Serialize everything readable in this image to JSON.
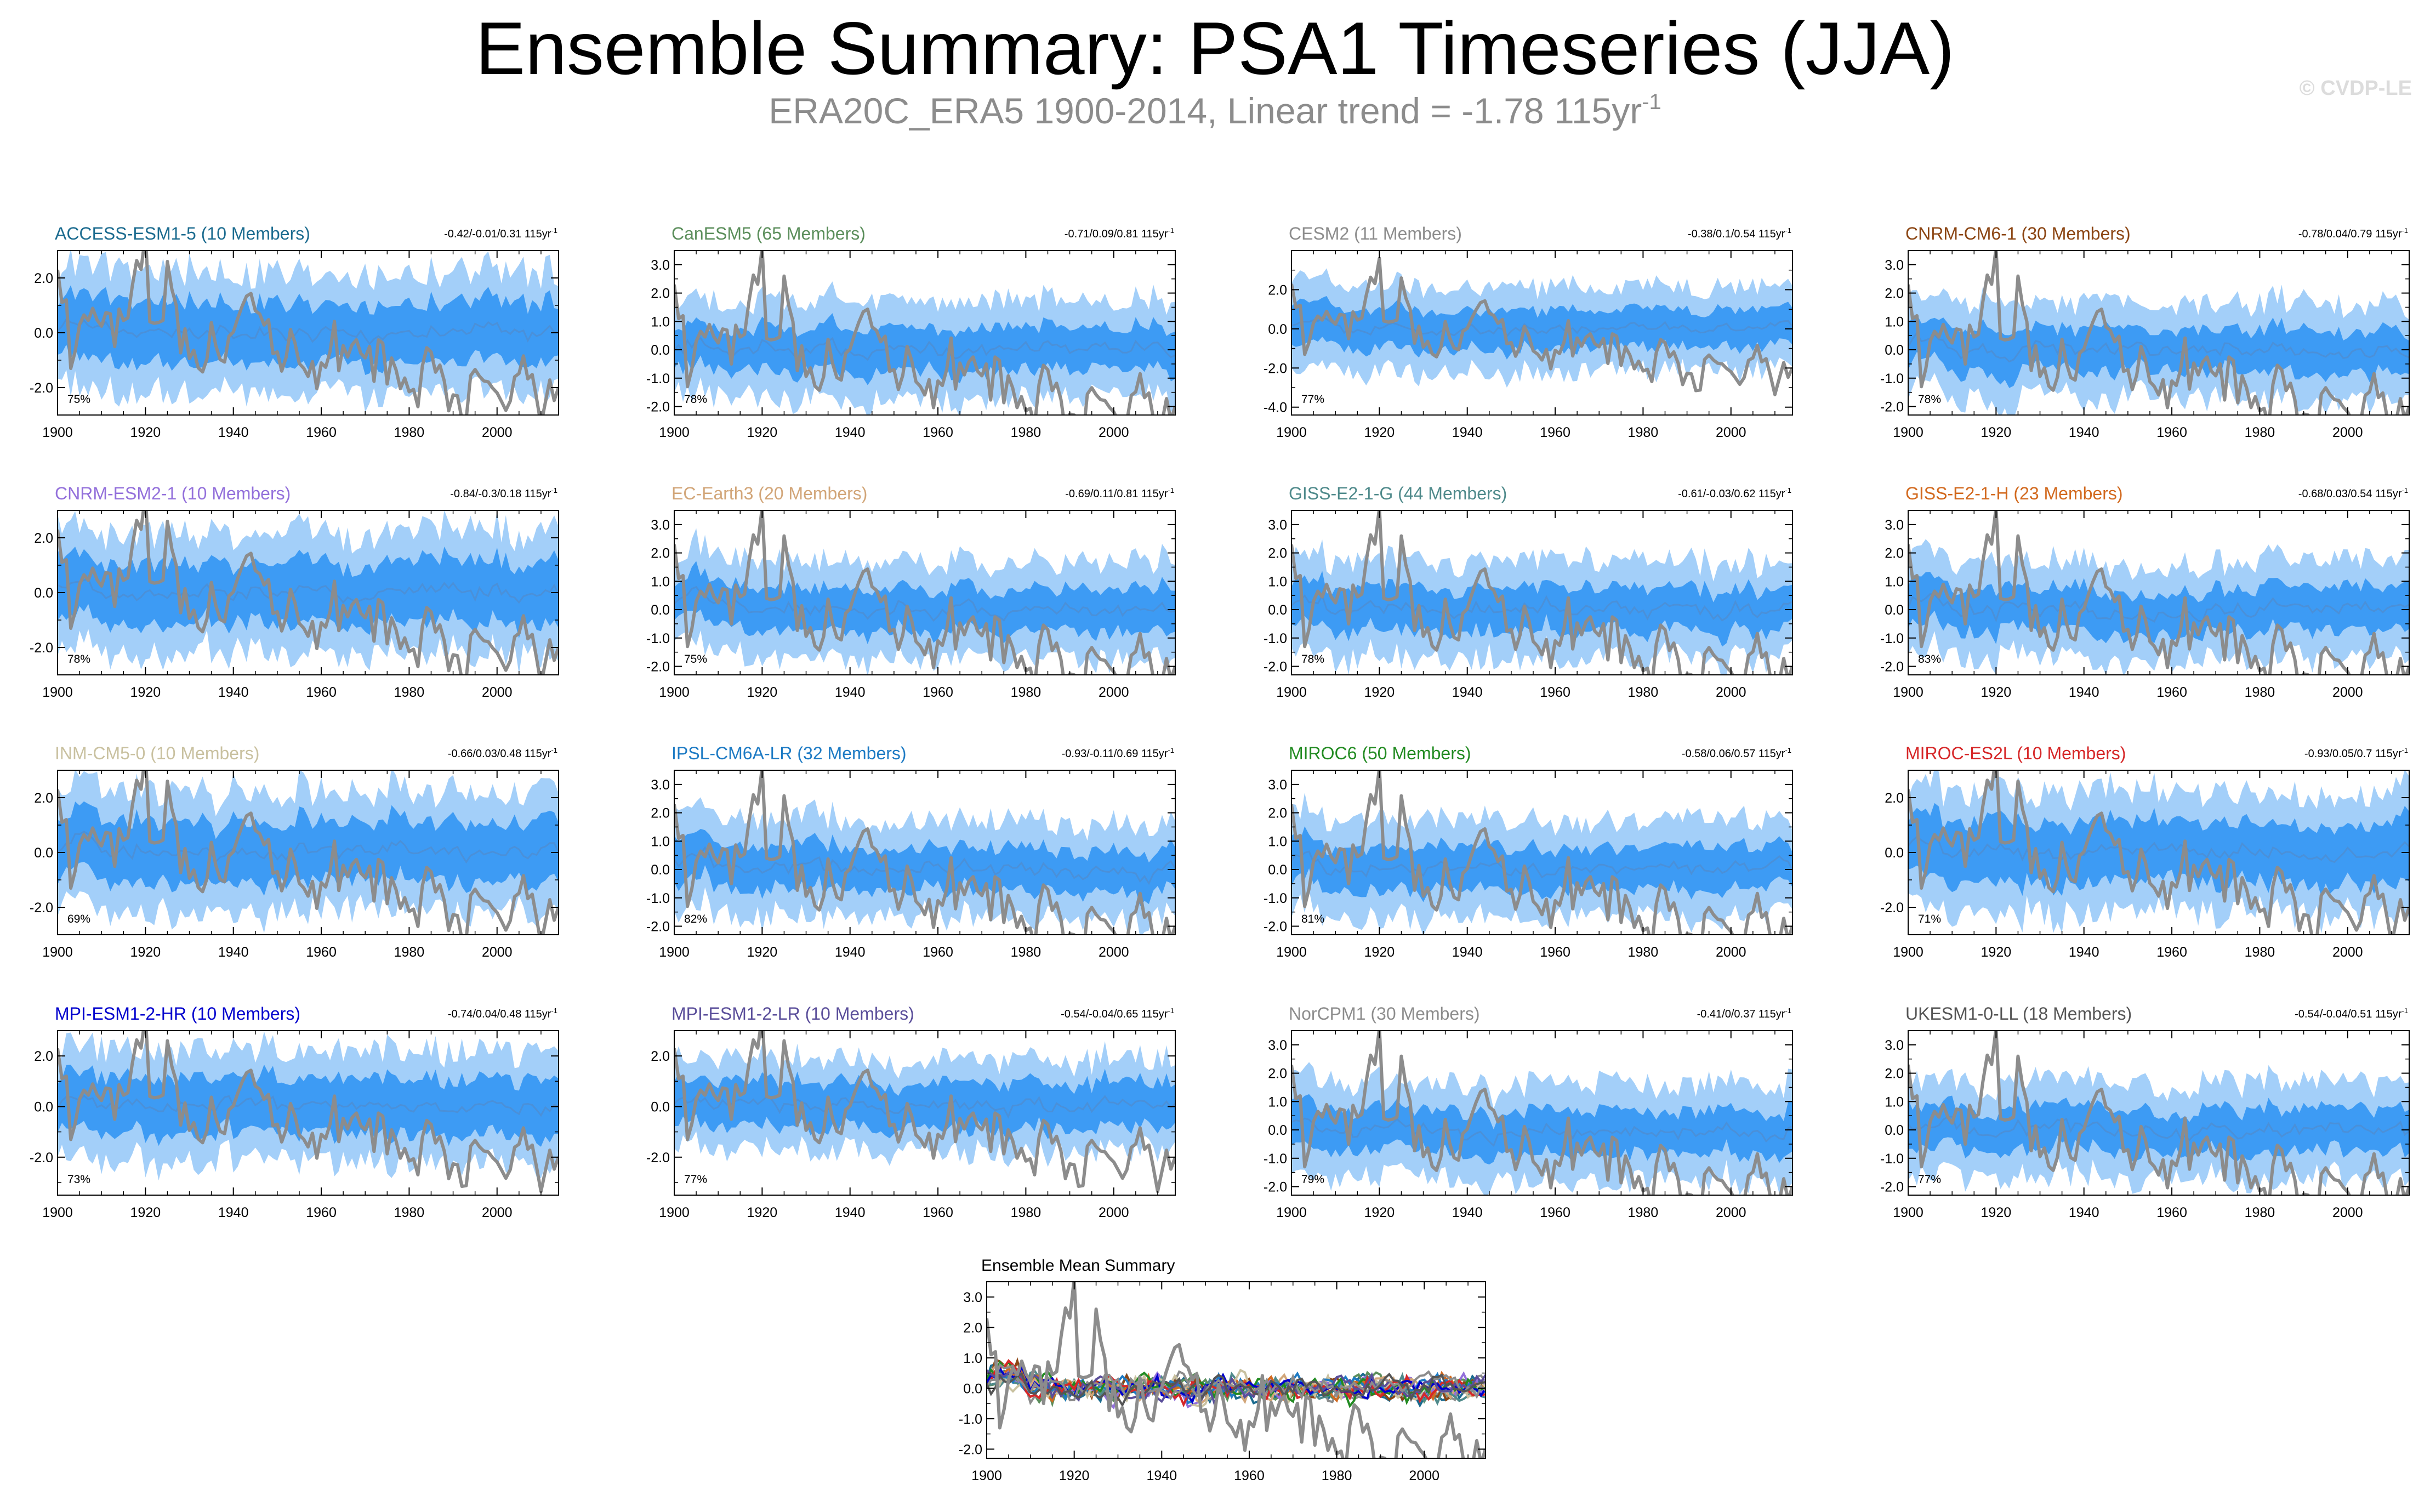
{
  "header": {
    "title": "Ensemble Summary: PSA1 Timeseries (JJA)",
    "subtitle_prefix": "ERA20C_ERA5 1900-2014, Linear trend = -1.78 115yr",
    "subtitle_exp": "-1",
    "watermark": "© CVDP-LE"
  },
  "colors": {
    "outer_band": "#a3cff9",
    "inner_band": "#3d9bf4",
    "ensemble_mean": "#4a90d9",
    "observed": "#8c8c8c",
    "axis": "#000000"
  },
  "chart_data": [
    {
      "type": "line",
      "name": "ACCESS-ESM1-5",
      "title": "ACCESS-ESM1-5 (10 Members)",
      "title_color": "#1b6b8f",
      "trend_label": "-0.42/-0.01/0.31 115yr",
      "trend_exp": "-1",
      "pct_label": "75%",
      "ylim": [
        -3.0,
        3.0
      ],
      "yticks": [
        -2.0,
        0.0,
        2.0
      ],
      "ytick_labels": [
        "-2.0",
        "0.0",
        "2.0"
      ],
      "xlim": [
        1900,
        2014
      ],
      "xticks": [
        1900,
        1920,
        1940,
        1960,
        1980,
        2000
      ],
      "xtick_labels": [
        "1900",
        "1920",
        "1940",
        "1960",
        "1980",
        "2000"
      ],
      "band_outer": 2.2,
      "band_inner": 1.1,
      "seed": 11
    },
    {
      "type": "line",
      "name": "CanESM5",
      "title": "CanESM5 (65 Members)",
      "title_color": "#5b8e5b",
      "trend_label": "-0.71/0.09/0.81 115yr",
      "trend_exp": "-1",
      "pct_label": "78%",
      "ylim": [
        -2.3,
        3.5
      ],
      "yticks": [
        -2.0,
        -1.0,
        0.0,
        1.0,
        2.0,
        3.0
      ],
      "ytick_labels": [
        "-2.0",
        "-1.0",
        "0.0",
        "1.0",
        "2.0",
        "3.0"
      ],
      "xlim": [
        1900,
        2014
      ],
      "xticks": [
        1900,
        1920,
        1940,
        1960,
        1980,
        2000
      ],
      "xtick_labels": [
        "1900",
        "1920",
        "1940",
        "1960",
        "1980",
        "2000"
      ],
      "band_outer": 1.7,
      "band_inner": 0.75,
      "seed": 22
    },
    {
      "type": "line",
      "name": "CESM2",
      "title": "CESM2 (11 Members)",
      "title_color": "#8c8c8c",
      "trend_label": "-0.38/0.1/0.54 115yr",
      "trend_exp": "-1",
      "pct_label": "77%",
      "ylim": [
        -4.4,
        4.0
      ],
      "yticks": [
        -4.0,
        -2.0,
        0.0,
        2.0
      ],
      "ytick_labels": [
        "-4.0",
        "-2.0",
        "0.0",
        "2.0"
      ],
      "xlim": [
        1900,
        2014
      ],
      "xticks": [
        1900,
        1920,
        1940,
        1960,
        1980,
        2000
      ],
      "xtick_labels": [
        "1900",
        "1920",
        "1940",
        "1960",
        "1980",
        "2000"
      ],
      "band_outer": 2.2,
      "band_inner": 1.0,
      "seed": 33
    },
    {
      "type": "line",
      "name": "CNRM-CM6-1",
      "title": "CNRM-CM6-1 (30 Members)",
      "title_color": "#8b4513",
      "trend_label": "-0.78/0.04/0.79 115yr",
      "trend_exp": "-1",
      "pct_label": "78%",
      "ylim": [
        -2.3,
        3.5
      ],
      "yticks": [
        -2.0,
        -1.0,
        0.0,
        1.0,
        2.0,
        3.0
      ],
      "ytick_labels": [
        "-2.0",
        "-1.0",
        "0.0",
        "1.0",
        "2.0",
        "3.0"
      ],
      "xlim": [
        1900,
        2014
      ],
      "xticks": [
        1900,
        1920,
        1940,
        1960,
        1980,
        2000
      ],
      "xtick_labels": [
        "1900",
        "1920",
        "1940",
        "1960",
        "1980",
        "2000"
      ],
      "band_outer": 1.7,
      "band_inner": 0.75,
      "seed": 44
    },
    {
      "type": "line",
      "name": "CNRM-ESM2-1",
      "title": "CNRM-ESM2-1 (10 Members)",
      "title_color": "#9370db",
      "trend_label": "-0.84/-0.3/0.18 115yr",
      "trend_exp": "-1",
      "pct_label": "78%",
      "ylim": [
        -3.0,
        3.0
      ],
      "yticks": [
        -2.0,
        0.0,
        2.0
      ],
      "ytick_labels": [
        "-2.0",
        "0.0",
        "2.0"
      ],
      "xlim": [
        1900,
        2014
      ],
      "xticks": [
        1900,
        1920,
        1940,
        1960,
        1980,
        2000
      ],
      "xtick_labels": [
        "1900",
        "1920",
        "1940",
        "1960",
        "1980",
        "2000"
      ],
      "band_outer": 2.2,
      "band_inner": 1.1,
      "seed": 55
    },
    {
      "type": "line",
      "name": "EC-Earth3",
      "title": "EC-Earth3 (20 Members)",
      "title_color": "#d2a679",
      "trend_label": "-0.69/0.11/0.81 115yr",
      "trend_exp": "-1",
      "pct_label": "75%",
      "ylim": [
        -2.3,
        3.5
      ],
      "yticks": [
        -2.0,
        -1.0,
        0.0,
        1.0,
        2.0,
        3.0
      ],
      "ytick_labels": [
        "-2.0",
        "-1.0",
        "0.0",
        "1.0",
        "2.0",
        "3.0"
      ],
      "xlim": [
        1900,
        2014
      ],
      "xticks": [
        1900,
        1920,
        1940,
        1960,
        1980,
        2000
      ],
      "xtick_labels": [
        "1900",
        "1920",
        "1940",
        "1960",
        "1980",
        "2000"
      ],
      "band_outer": 1.7,
      "band_inner": 0.75,
      "seed": 66
    },
    {
      "type": "line",
      "name": "GISS-E2-1-G",
      "title": "GISS-E2-1-G (44 Members)",
      "title_color": "#4f8a8b",
      "trend_label": "-0.61/-0.03/0.62 115yr",
      "trend_exp": "-1",
      "pct_label": "78%",
      "ylim": [
        -2.3,
        3.5
      ],
      "yticks": [
        -2.0,
        -1.0,
        0.0,
        1.0,
        2.0,
        3.0
      ],
      "ytick_labels": [
        "-2.0",
        "-1.0",
        "0.0",
        "1.0",
        "2.0",
        "3.0"
      ],
      "xlim": [
        1900,
        2014
      ],
      "xticks": [
        1900,
        1920,
        1940,
        1960,
        1980,
        2000
      ],
      "xtick_labels": [
        "1900",
        "1920",
        "1940",
        "1960",
        "1980",
        "2000"
      ],
      "band_outer": 1.7,
      "band_inner": 0.75,
      "seed": 77
    },
    {
      "type": "line",
      "name": "GISS-E2-1-H",
      "title": "GISS-E2-1-H (23 Members)",
      "title_color": "#d2691e",
      "trend_label": "-0.68/0.03/0.54 115yr",
      "trend_exp": "-1",
      "pct_label": "83%",
      "ylim": [
        -2.3,
        3.5
      ],
      "yticks": [
        -2.0,
        -1.0,
        0.0,
        1.0,
        2.0,
        3.0
      ],
      "ytick_labels": [
        "-2.0",
        "-1.0",
        "0.0",
        "1.0",
        "2.0",
        "3.0"
      ],
      "xlim": [
        1900,
        2014
      ],
      "xticks": [
        1900,
        1920,
        1940,
        1960,
        1980,
        2000
      ],
      "xtick_labels": [
        "1900",
        "1920",
        "1940",
        "1960",
        "1980",
        "2000"
      ],
      "band_outer": 1.7,
      "band_inner": 0.75,
      "seed": 88
    },
    {
      "type": "line",
      "name": "INM-CM5-0",
      "title": "INM-CM5-0 (10 Members)",
      "title_color": "#c9c1a0",
      "trend_label": "-0.66/0.03/0.48 115yr",
      "trend_exp": "-1",
      "pct_label": "69%",
      "ylim": [
        -3.0,
        3.0
      ],
      "yticks": [
        -2.0,
        0.0,
        2.0
      ],
      "ytick_labels": [
        "-2.0",
        "0.0",
        "2.0"
      ],
      "xlim": [
        1900,
        2014
      ],
      "xticks": [
        1900,
        1920,
        1940,
        1960,
        1980,
        2000
      ],
      "xtick_labels": [
        "1900",
        "1920",
        "1940",
        "1960",
        "1980",
        "2000"
      ],
      "band_outer": 2.2,
      "band_inner": 1.1,
      "seed": 99
    },
    {
      "type": "line",
      "name": "IPSL-CM6A-LR",
      "title": "IPSL-CM6A-LR (32 Members)",
      "title_color": "#1e7bc4",
      "trend_label": "-0.93/-0.11/0.69 115yr",
      "trend_exp": "-1",
      "pct_label": "82%",
      "ylim": [
        -2.3,
        3.5
      ],
      "yticks": [
        -2.0,
        -1.0,
        0.0,
        1.0,
        2.0,
        3.0
      ],
      "ytick_labels": [
        "-2.0",
        "-1.0",
        "0.0",
        "1.0",
        "2.0",
        "3.0"
      ],
      "xlim": [
        1900,
        2014
      ],
      "xticks": [
        1900,
        1920,
        1940,
        1960,
        1980,
        2000
      ],
      "xtick_labels": [
        "1900",
        "1920",
        "1940",
        "1960",
        "1980",
        "2000"
      ],
      "band_outer": 1.7,
      "band_inner": 0.75,
      "seed": 111
    },
    {
      "type": "line",
      "name": "MIROC6",
      "title": "MIROC6 (50 Members)",
      "title_color": "#228b22",
      "trend_label": "-0.58/0.06/0.57 115yr",
      "trend_exp": "-1",
      "pct_label": "81%",
      "ylim": [
        -2.3,
        3.5
      ],
      "yticks": [
        -2.0,
        -1.0,
        0.0,
        1.0,
        2.0,
        3.0
      ],
      "ytick_labels": [
        "-2.0",
        "-1.0",
        "0.0",
        "1.0",
        "2.0",
        "3.0"
      ],
      "xlim": [
        1900,
        2014
      ],
      "xticks": [
        1900,
        1920,
        1940,
        1960,
        1980,
        2000
      ],
      "xtick_labels": [
        "1900",
        "1920",
        "1940",
        "1960",
        "1980",
        "2000"
      ],
      "band_outer": 1.7,
      "band_inner": 0.75,
      "seed": 122
    },
    {
      "type": "line",
      "name": "MIROC-ES2L",
      "title": "MIROC-ES2L (10 Members)",
      "title_color": "#d62728",
      "trend_label": "-0.93/0.05/0.7 115yr",
      "trend_exp": "-1",
      "pct_label": "71%",
      "ylim": [
        -3.0,
        3.0
      ],
      "yticks": [
        -2.0,
        0.0,
        2.0
      ],
      "ytick_labels": [
        "-2.0",
        "0.0",
        "2.0"
      ],
      "xlim": [
        1900,
        2014
      ],
      "xticks": [
        1900,
        1920,
        1940,
        1960,
        1980,
        2000
      ],
      "xtick_labels": [
        "1900",
        "1920",
        "1940",
        "1960",
        "1980",
        "2000"
      ],
      "band_outer": 2.2,
      "band_inner": 1.1,
      "seed": 133
    },
    {
      "type": "line",
      "name": "MPI-ESM1-2-HR",
      "title": "MPI-ESM1-2-HR (10 Members)",
      "title_color": "#0000cd",
      "trend_label": "-0.74/0.04/0.48 115yr",
      "trend_exp": "-1",
      "pct_label": "73%",
      "ylim": [
        -3.5,
        3.0
      ],
      "yticks": [
        -2.0,
        0.0,
        2.0
      ],
      "ytick_labels": [
        "-2.0",
        "0.0",
        "2.0"
      ],
      "xlim": [
        1900,
        2014
      ],
      "xticks": [
        1900,
        1920,
        1940,
        1960,
        1980,
        2000
      ],
      "xtick_labels": [
        "1900",
        "1920",
        "1940",
        "1960",
        "1980",
        "2000"
      ],
      "band_outer": 2.2,
      "band_inner": 1.1,
      "seed": 144
    },
    {
      "type": "line",
      "name": "MPI-ESM1-2-LR",
      "title": "MPI-ESM1-2-LR (10 Members)",
      "title_color": "#5a4e9a",
      "trend_label": "-0.54/-0.04/0.65 115yr",
      "trend_exp": "-1",
      "pct_label": "77%",
      "ylim": [
        -3.5,
        3.0
      ],
      "yticks": [
        -2.0,
        0.0,
        2.0
      ],
      "ytick_labels": [
        "-2.0",
        "0.0",
        "2.0"
      ],
      "xlim": [
        1900,
        2014
      ],
      "xticks": [
        1900,
        1920,
        1940,
        1960,
        1980,
        2000
      ],
      "xtick_labels": [
        "1900",
        "1920",
        "1940",
        "1960",
        "1980",
        "2000"
      ],
      "band_outer": 1.8,
      "band_inner": 0.9,
      "seed": 155
    },
    {
      "type": "line",
      "name": "NorCPM1",
      "title": "NorCPM1 (30 Members)",
      "title_color": "#8c8c8c",
      "trend_label": "-0.41/0/0.37 115yr",
      "trend_exp": "-1",
      "pct_label": "79%",
      "ylim": [
        -2.3,
        3.5
      ],
      "yticks": [
        -2.0,
        -1.0,
        0.0,
        1.0,
        2.0,
        3.0
      ],
      "ytick_labels": [
        "-2.0",
        "-1.0",
        "0.0",
        "1.0",
        "2.0",
        "3.0"
      ],
      "xlim": [
        1900,
        2014
      ],
      "xticks": [
        1900,
        1920,
        1940,
        1960,
        1980,
        2000
      ],
      "xtick_labels": [
        "1900",
        "1920",
        "1940",
        "1960",
        "1980",
        "2000"
      ],
      "band_outer": 1.7,
      "band_inner": 0.75,
      "seed": 166
    },
    {
      "type": "line",
      "name": "UKESM1-0-LL",
      "title": "UKESM1-0-LL (18 Members)",
      "title_color": "#555555",
      "trend_label": "-0.54/-0.04/0.51 115yr",
      "trend_exp": "-1",
      "pct_label": "77%",
      "ylim": [
        -2.3,
        3.5
      ],
      "yticks": [
        -2.0,
        -1.0,
        0.0,
        1.0,
        2.0,
        3.0
      ],
      "ytick_labels": [
        "-2.0",
        "-1.0",
        "0.0",
        "1.0",
        "2.0",
        "3.0"
      ],
      "xlim": [
        1900,
        2014
      ],
      "xticks": [
        1900,
        1920,
        1940,
        1960,
        1980,
        2000
      ],
      "xtick_labels": [
        "1900",
        "1920",
        "1940",
        "1960",
        "1980",
        "2000"
      ],
      "band_outer": 1.7,
      "band_inner": 0.75,
      "seed": 177
    },
    {
      "type": "line",
      "name": "Ensemble Mean Summary",
      "title": "Ensemble Mean Summary",
      "title_color": "#000000",
      "trend_label": "",
      "trend_exp": "",
      "pct_label": "",
      "ylim": [
        -2.3,
        3.5
      ],
      "yticks": [
        -2.0,
        -1.0,
        0.0,
        1.0,
        2.0,
        3.0
      ],
      "ytick_labels": [
        "-2.0",
        "-1.0",
        "0.0",
        "1.0",
        "2.0",
        "3.0"
      ],
      "xlim": [
        1900,
        2014
      ],
      "xticks": [
        1900,
        1920,
        1940,
        1960,
        1980,
        2000
      ],
      "xtick_labels": [
        "1900",
        "1920",
        "1940",
        "1960",
        "1980",
        "2000"
      ],
      "band_outer": 0,
      "band_inner": 0,
      "seed": 188,
      "summary": true
    }
  ]
}
